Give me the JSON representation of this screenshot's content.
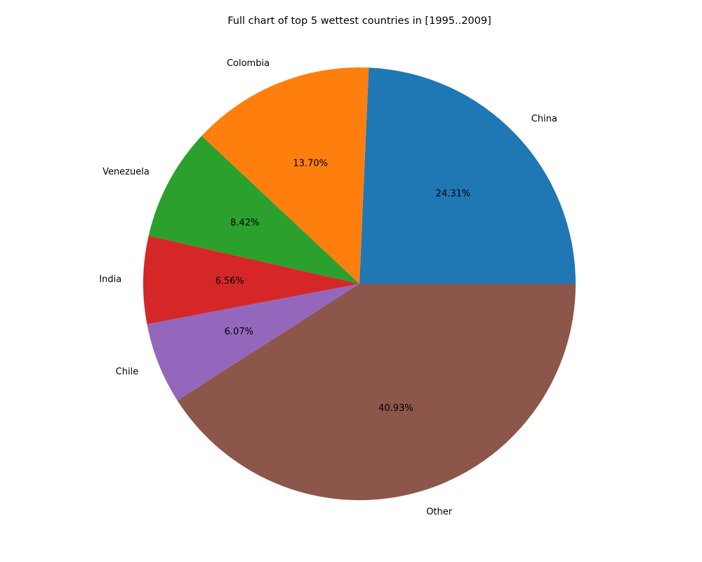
{
  "chart_data": {
    "type": "pie",
    "title": "Full chart of top 5 wettest countries in [1995..2009]",
    "start_angle_deg": 0,
    "direction": "counterclockwise",
    "slices": [
      {
        "label": "China",
        "value": 24.31,
        "pct_label": "24.31%",
        "color": "#1f77b4"
      },
      {
        "label": "Colombia",
        "value": 13.7,
        "pct_label": "13.70%",
        "color": "#ff7f0e"
      },
      {
        "label": "Venezuela",
        "value": 8.42,
        "pct_label": "8.42%",
        "color": "#2ca02c"
      },
      {
        "label": "India",
        "value": 6.56,
        "pct_label": "6.56%",
        "color": "#d62728"
      },
      {
        "label": "Chile",
        "value": 6.07,
        "pct_label": "6.07%",
        "color": "#9467bd"
      },
      {
        "label": "Other",
        "value": 40.93,
        "pct_label": "40.93%",
        "color": "#8c564b"
      }
    ]
  }
}
